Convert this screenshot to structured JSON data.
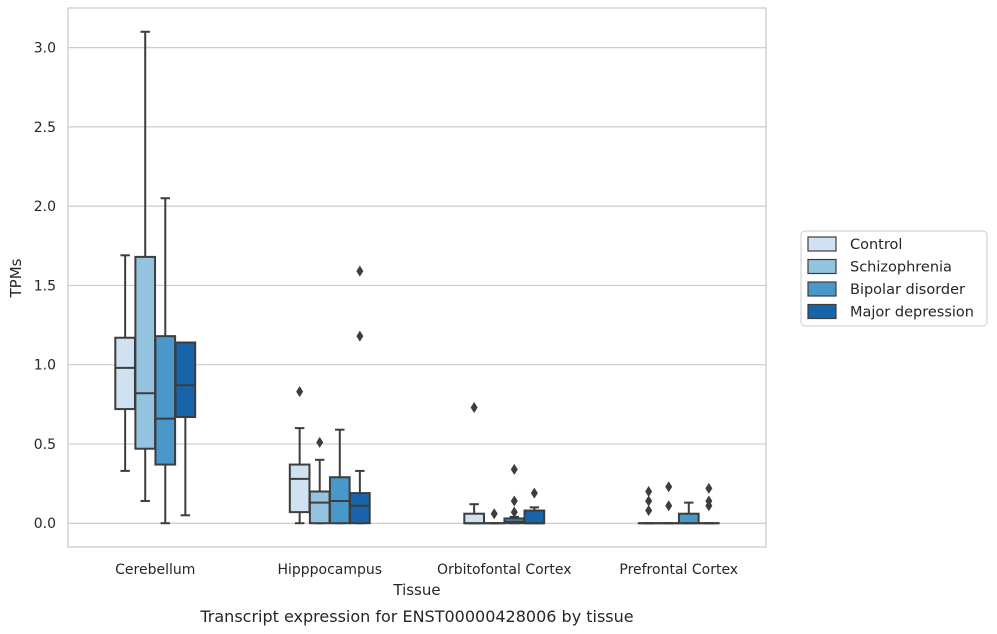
{
  "caption": "Transcript expression for ENST00000428006 by tissue",
  "chart_data": {
    "type": "box",
    "title": "",
    "xlabel": "Tissue",
    "ylabel": "TPMs",
    "ylim": [
      -0.15,
      3.25
    ],
    "yticks": [
      "0.0",
      "0.5",
      "1.0",
      "1.5",
      "2.0",
      "2.5",
      "3.0"
    ],
    "grid": "horizontal",
    "legend_position": "right",
    "categories": [
      "Cerebellum",
      "Hipppocampus",
      "Orbitofontal Cortex",
      "Prefrontal Cortex"
    ],
    "series": [
      {
        "name": "Control",
        "color": "#d0e1f2",
        "boxes": [
          {
            "min": 0.33,
            "q1": 0.72,
            "median": 0.98,
            "q3": 1.17,
            "max": 1.69,
            "outliers": []
          },
          {
            "min": 0.0,
            "q1": 0.07,
            "median": 0.28,
            "q3": 0.37,
            "max": 0.6,
            "outliers": [
              0.83
            ]
          },
          {
            "min": 0.0,
            "q1": 0.0,
            "median": 0.0,
            "q3": 0.06,
            "max": 0.12,
            "outliers": [
              0.73
            ]
          },
          {
            "min": 0.0,
            "q1": 0.0,
            "median": 0.0,
            "q3": 0.0,
            "max": 0.0,
            "outliers": [
              0.08,
              0.14,
              0.2
            ]
          }
        ]
      },
      {
        "name": "Schizophrenia",
        "color": "#94c4df",
        "boxes": [
          {
            "min": 0.14,
            "q1": 0.47,
            "median": 0.82,
            "q3": 1.68,
            "max": 3.1,
            "outliers": []
          },
          {
            "min": 0.0,
            "q1": 0.0,
            "median": 0.13,
            "q3": 0.2,
            "max": 0.4,
            "outliers": [
              0.51
            ]
          },
          {
            "min": 0.0,
            "q1": 0.0,
            "median": 0.0,
            "q3": 0.0,
            "max": 0.0,
            "outliers": [
              0.06
            ]
          },
          {
            "min": 0.0,
            "q1": 0.0,
            "median": 0.0,
            "q3": 0.0,
            "max": 0.0,
            "outliers": [
              0.11,
              0.23
            ]
          }
        ]
      },
      {
        "name": "Bipolar disorder",
        "color": "#4a98c9",
        "boxes": [
          {
            "min": 0.0,
            "q1": 0.37,
            "median": 0.66,
            "q3": 1.18,
            "max": 2.05,
            "outliers": []
          },
          {
            "min": 0.0,
            "q1": 0.0,
            "median": 0.14,
            "q3": 0.29,
            "max": 0.59,
            "outliers": []
          },
          {
            "min": 0.0,
            "q1": 0.0,
            "median": 0.01,
            "q3": 0.03,
            "max": 0.04,
            "outliers": [
              0.07,
              0.14,
              0.34
            ]
          },
          {
            "min": 0.0,
            "q1": 0.0,
            "median": 0.0,
            "q3": 0.06,
            "max": 0.13,
            "outliers": []
          }
        ]
      },
      {
        "name": "Major depression",
        "color": "#1764ab",
        "boxes": [
          {
            "min": 0.05,
            "q1": 0.67,
            "median": 0.87,
            "q3": 1.14,
            "max": 1.14,
            "outliers": []
          },
          {
            "min": 0.0,
            "q1": 0.0,
            "median": 0.11,
            "q3": 0.19,
            "max": 0.33,
            "outliers": [
              1.18,
              1.59
            ]
          },
          {
            "min": 0.0,
            "q1": 0.0,
            "median": 0.0,
            "q3": 0.08,
            "max": 0.1,
            "outliers": [
              0.19
            ]
          },
          {
            "min": 0.0,
            "q1": 0.0,
            "median": 0.0,
            "q3": 0.0,
            "max": 0.0,
            "outliers": [
              0.11,
              0.14,
              0.22
            ]
          }
        ]
      }
    ]
  }
}
